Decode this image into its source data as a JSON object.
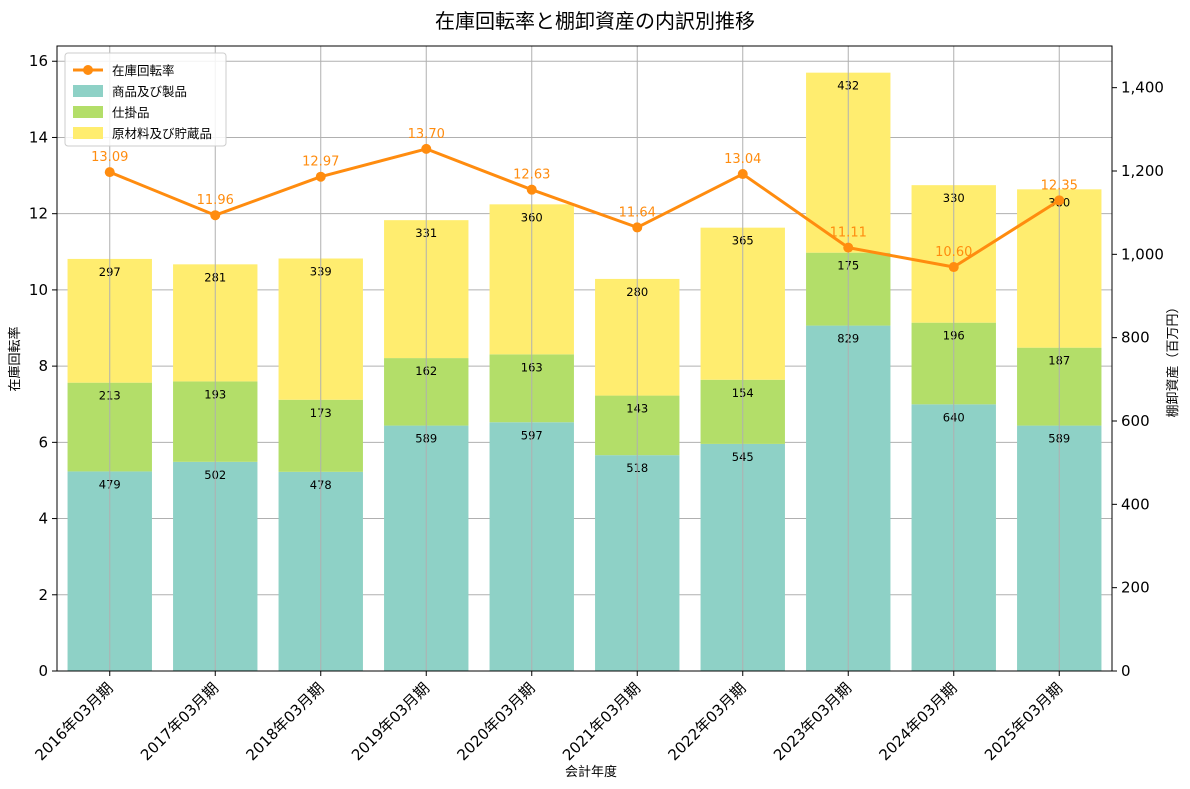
{
  "chart_data": {
    "type": "bar",
    "title": "在庫回転率と棚卸資産の内訳別推移",
    "xlabel": "会計年度",
    "ylabel_left": "在庫回転率",
    "ylabel_right": "棚卸資産（百万円）",
    "categories": [
      "2016年03月期",
      "2017年03月期",
      "2018年03月期",
      "2019年03月期",
      "2020年03月期",
      "2021年03月期",
      "2022年03月期",
      "2023年03月期",
      "2024年03月期",
      "2025年03月期"
    ],
    "ylim_left": [
      0,
      16.4
    ],
    "ylim_right": [
      0,
      1500
    ],
    "yticks_left": [
      "0",
      "2",
      "4",
      "6",
      "8",
      "10",
      "12",
      "14",
      "16"
    ],
    "yticks_right": [
      "0",
      "200",
      "400",
      "600",
      "800",
      "1,000",
      "1,200",
      "1,400"
    ],
    "series": [
      {
        "name": "商品及び製品",
        "axis": "right",
        "kind": "bar",
        "color": "#8ed1c6",
        "values": [
          479,
          502,
          478,
          589,
          597,
          518,
          545,
          829,
          640,
          589
        ]
      },
      {
        "name": "仕掛品",
        "axis": "right",
        "kind": "bar",
        "color": "#b3de69",
        "values": [
          213,
          193,
          173,
          162,
          163,
          143,
          154,
          175,
          196,
          187
        ]
      },
      {
        "name": "原材料及び貯蔵品",
        "axis": "right",
        "kind": "bar",
        "color": "#ffed6f",
        "values": [
          297,
          281,
          339,
          331,
          360,
          280,
          365,
          432,
          330,
          380
        ]
      },
      {
        "name": "在庫回転率",
        "axis": "left",
        "kind": "line",
        "color": "#ff8c0f",
        "values": [
          13.09,
          11.96,
          12.97,
          13.7,
          12.63,
          11.64,
          13.04,
          11.11,
          10.6,
          12.35
        ],
        "labels": [
          "13.09",
          "11.96",
          "12.97",
          "13.70",
          "12.63",
          "11.64",
          "13.04",
          "11.11",
          "10.60",
          "12.35"
        ]
      }
    ],
    "grid": true,
    "legend": "top-left"
  }
}
